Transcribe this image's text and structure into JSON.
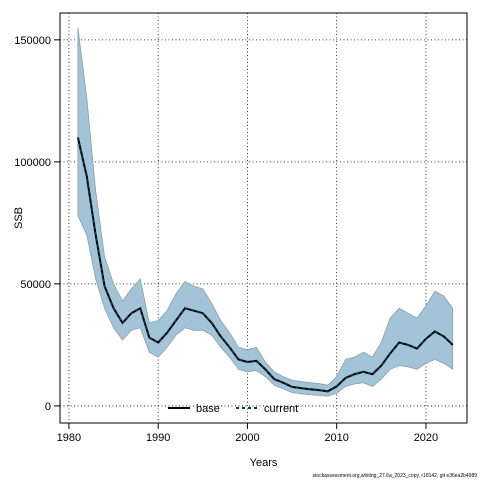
{
  "chart_data": {
    "type": "line",
    "xlabel": "Years",
    "ylabel": "SSB",
    "xlim": [
      1979.0,
      2024.6
    ],
    "ylim": [
      -7000,
      161000
    ],
    "x_ticks": [
      1980,
      1990,
      2000,
      2010,
      2020
    ],
    "y_ticks": [
      0,
      50000,
      100000,
      150000
    ],
    "x_tick_labels": [
      "1980",
      "1990",
      "2000",
      "2010",
      "2020"
    ],
    "y_tick_labels": [
      "0",
      "50000",
      "100000",
      "150000"
    ],
    "grid": true,
    "legend_position": "bottom-center",
    "footnote": "stockassessment.org,whiting_27.6a_2023_copy, r18142, git e36ea2b4989",
    "colors": {
      "band_fill": "#a3c4d6",
      "band_stroke": "#8e9ea8",
      "base": "#000000",
      "current": "#12354b"
    },
    "x": [
      1981,
      1982,
      1983,
      1984,
      1985,
      1986,
      1987,
      1988,
      1989,
      1990,
      1991,
      1992,
      1993,
      1994,
      1995,
      1996,
      1997,
      1998,
      1999,
      2000,
      2001,
      2002,
      2003,
      2004,
      2005,
      2006,
      2007,
      2008,
      2009,
      2010,
      2011,
      2012,
      2013,
      2014,
      2015,
      2016,
      2017,
      2018,
      2019,
      2020,
      2021,
      2022,
      2023
    ],
    "band_lower": [
      78000,
      70000,
      52000,
      40000,
      32000,
      27000,
      31000,
      32000,
      22000,
      20000,
      24000,
      29000,
      32000,
      31000,
      31000,
      29000,
      24000,
      20000,
      15000,
      14000,
      14500,
      12000,
      8500,
      7000,
      5500,
      5000,
      4500,
      4300,
      4000,
      5200,
      8000,
      9000,
      9500,
      8000,
      11000,
      15000,
      16500,
      16000,
      15000,
      17500,
      19000,
      17500,
      15000
    ],
    "band_upper": [
      155000,
      126000,
      88000,
      61000,
      50000,
      43000,
      48000,
      52000,
      34000,
      35000,
      39000,
      46000,
      51000,
      49000,
      48000,
      42000,
      35000,
      30000,
      24000,
      23000,
      24000,
      18000,
      14000,
      12000,
      10500,
      10000,
      9500,
      9200,
      8500,
      12000,
      19000,
      20000,
      22000,
      20000,
      26000,
      36000,
      40000,
      38000,
      36000,
      41000,
      47000,
      45000,
      40000
    ],
    "series": [
      {
        "name": "base",
        "values": [
          110000,
          94000,
          70000,
          49000,
          40000,
          34000,
          38000,
          40000,
          28000,
          26000,
          30000,
          35000,
          40000,
          39000,
          38000,
          34000,
          28500,
          24000,
          19000,
          18000,
          18500,
          15000,
          11000,
          9500,
          7800,
          7300,
          6800,
          6500,
          6000,
          8000,
          11500,
          13000,
          14000,
          13000,
          16500,
          21500,
          26000,
          25000,
          23500,
          27500,
          30500,
          28500,
          25000
        ]
      },
      {
        "name": "current",
        "values": [
          110000,
          94000,
          70000,
          49000,
          40000,
          34000,
          38000,
          40000,
          28000,
          26000,
          30000,
          35000,
          40000,
          39000,
          38000,
          34000,
          28500,
          24000,
          19000,
          18000,
          18500,
          15000,
          11000,
          9500,
          7800,
          7300,
          6800,
          6500,
          6000,
          8000,
          11500,
          13000,
          14000,
          13000,
          16500,
          21500,
          26000,
          25000,
          23500,
          27500,
          30500,
          28500,
          25000
        ]
      }
    ]
  }
}
